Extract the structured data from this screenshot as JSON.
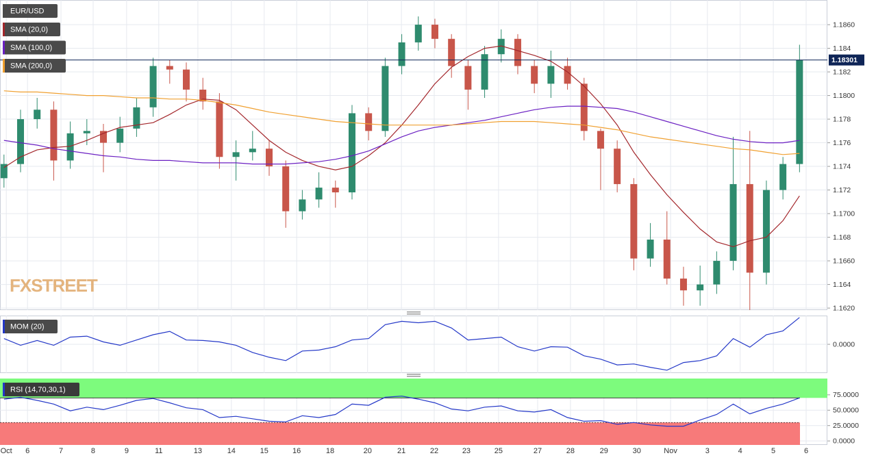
{
  "chart_data": [
    {
      "type": "candlestick",
      "title": "EUR/USD",
      "brand": "FXSTREET",
      "x": [
        0,
        0.5,
        1,
        1.5,
        2,
        2.5,
        3,
        3.5,
        4,
        4.5,
        5,
        5.5,
        6,
        6.5,
        7,
        7.5,
        8,
        8.5,
        9,
        9.5,
        10,
        10.5,
        11,
        11.5,
        12,
        12.5,
        13,
        13.5,
        14,
        14.5,
        15,
        15.5,
        16,
        16.5,
        17,
        17.5,
        18,
        18.5,
        19,
        19.5,
        20,
        20.5,
        21,
        21.5,
        22,
        22.5,
        23,
        23.5,
        24
      ],
      "open": [
        1.173,
        1.1742,
        1.178,
        1.1788,
        1.1745,
        1.1768,
        1.177,
        1.176,
        1.1772,
        1.179,
        1.1825,
        1.1822,
        1.1805,
        1.1795,
        1.1748,
        1.1752,
        1.1755,
        1.174,
        1.1702,
        1.1712,
        1.1722,
        1.1718,
        1.1785,
        1.177,
        1.1825,
        1.1845,
        1.186,
        1.1848,
        1.1825,
        1.1805,
        1.1835,
        1.1848,
        1.1825,
        1.181,
        1.1825,
        1.181,
        1.177,
        1.1755,
        1.1725,
        1.1662,
        1.1678,
        1.1645,
        1.1635,
        1.164,
        1.166,
        1.1725,
        1.165,
        1.172,
        1.1742
      ],
      "high": [
        1.175,
        1.1788,
        1.1798,
        1.1795,
        1.1778,
        1.178,
        1.1776,
        1.1782,
        1.1798,
        1.1832,
        1.183,
        1.1828,
        1.1815,
        1.1802,
        1.1762,
        1.177,
        1.1762,
        1.1745,
        1.172,
        1.1735,
        1.1728,
        1.1792,
        1.179,
        1.1832,
        1.1852,
        1.1867,
        1.1865,
        1.1852,
        1.183,
        1.1842,
        1.1856,
        1.1852,
        1.183,
        1.1838,
        1.1832,
        1.1815,
        1.1772,
        1.1762,
        1.173,
        1.1692,
        1.1702,
        1.1655,
        1.1656,
        1.1668,
        1.1765,
        1.177,
        1.1728,
        1.1748,
        1.1843
      ],
      "low": [
        1.1722,
        1.1735,
        1.1772,
        1.1728,
        1.1738,
        1.1758,
        1.1735,
        1.1752,
        1.1765,
        1.1782,
        1.181,
        1.1795,
        1.1788,
        1.1738,
        1.1728,
        1.1745,
        1.1732,
        1.1688,
        1.1695,
        1.1705,
        1.1705,
        1.1712,
        1.1762,
        1.1765,
        1.1818,
        1.1838,
        1.184,
        1.1815,
        1.1788,
        1.1798,
        1.1828,
        1.1818,
        1.1802,
        1.1798,
        1.1805,
        1.1762,
        1.172,
        1.1718,
        1.1652,
        1.1655,
        1.164,
        1.1622,
        1.1622,
        1.1632,
        1.1652,
        1.1605,
        1.164,
        1.1712,
        1.1735
      ],
      "close": [
        1.1742,
        1.178,
        1.1788,
        1.1745,
        1.1768,
        1.177,
        1.176,
        1.1772,
        1.179,
        1.1825,
        1.1822,
        1.1805,
        1.1795,
        1.1748,
        1.1752,
        1.1755,
        1.174,
        1.1702,
        1.1712,
        1.1722,
        1.1718,
        1.1785,
        1.177,
        1.1825,
        1.1845,
        1.186,
        1.1848,
        1.1825,
        1.1805,
        1.1835,
        1.1848,
        1.1825,
        1.181,
        1.1825,
        1.181,
        1.177,
        1.1755,
        1.1725,
        1.1662,
        1.1678,
        1.1645,
        1.1635,
        1.164,
        1.166,
        1.1725,
        1.165,
        1.172,
        1.1742,
        1.183
      ],
      "up_color": "#2e8b6e",
      "down_color": "#c8564a",
      "series": [
        {
          "name": "SMA (20,0)",
          "color": "#a3262b",
          "values": [
            1.1739,
            1.1748,
            1.1754,
            1.1756,
            1.1757,
            1.1762,
            1.1768,
            1.1773,
            1.1775,
            1.1777,
            1.1784,
            1.1792,
            1.1797,
            1.1796,
            1.1788,
            1.1775,
            1.1762,
            1.1752,
            1.1745,
            1.174,
            1.1737,
            1.174,
            1.1749,
            1.176,
            1.1775,
            1.1792,
            1.181,
            1.1824,
            1.1833,
            1.184,
            1.1842,
            1.1838,
            1.1834,
            1.1829,
            1.182,
            1.1808,
            1.1793,
            1.1775,
            1.1752,
            1.1733,
            1.1716,
            1.1701,
            1.1687,
            1.1676,
            1.1672,
            1.1677,
            1.168,
            1.1694,
            1.1715
          ]
        },
        {
          "name": "SMA (100,0)",
          "color": "#6a1fc2",
          "values": [
            1.1762,
            1.176,
            1.1758,
            1.1755,
            1.1753,
            1.1751,
            1.1749,
            1.1748,
            1.1746,
            1.1745,
            1.1745,
            1.1744,
            1.1743,
            1.1743,
            1.1743,
            1.1742,
            1.1742,
            1.1742,
            1.1743,
            1.1744,
            1.1746,
            1.1749,
            1.1753,
            1.1759,
            1.1765,
            1.177,
            1.1773,
            1.1775,
            1.1777,
            1.1779,
            1.1782,
            1.1785,
            1.1788,
            1.179,
            1.1791,
            1.1791,
            1.179,
            1.1789,
            1.1786,
            1.1782,
            1.1778,
            1.1774,
            1.177,
            1.1766,
            1.1763,
            1.1761,
            1.176,
            1.176,
            1.1762
          ]
        },
        {
          "name": "SMA (200,0)",
          "color": "#f0a030",
          "values": [
            1.1804,
            1.1803,
            1.1803,
            1.1802,
            1.1801,
            1.18,
            1.18,
            1.1799,
            1.1798,
            1.1798,
            1.1797,
            1.1797,
            1.1796,
            1.1794,
            1.1792,
            1.1789,
            1.1786,
            1.1784,
            1.1782,
            1.178,
            1.1778,
            1.1777,
            1.1776,
            1.1775,
            1.1775,
            1.1775,
            1.1775,
            1.1775,
            1.1776,
            1.1777,
            1.1778,
            1.1778,
            1.1778,
            1.1777,
            1.1776,
            1.1775,
            1.1773,
            1.1771,
            1.1768,
            1.1765,
            1.1763,
            1.1761,
            1.1759,
            1.1757,
            1.1755,
            1.1754,
            1.1752,
            1.175,
            1.1751
          ]
        }
      ],
      "last_price": 1.18301,
      "last_price_color": "#0f2557",
      "xlim": [
        -0.12,
        24.84
      ],
      "xticks": [
        {
          "value": 0.07,
          "label": "Oct"
        },
        {
          "value": 0.71,
          "label": "6"
        },
        {
          "value": 1.72,
          "label": "7"
        },
        {
          "value": 2.69,
          "label": "8"
        },
        {
          "value": 3.7,
          "label": "9"
        },
        {
          "value": 4.67,
          "label": "11"
        },
        {
          "value": 5.85,
          "label": "13"
        },
        {
          "value": 6.86,
          "label": "14"
        },
        {
          "value": 7.85,
          "label": "15"
        },
        {
          "value": 8.83,
          "label": "16"
        },
        {
          "value": 9.84,
          "label": "18"
        },
        {
          "value": 10.97,
          "label": "20"
        },
        {
          "value": 11.99,
          "label": "21"
        },
        {
          "value": 12.98,
          "label": "22"
        },
        {
          "value": 13.95,
          "label": "23"
        },
        {
          "value": 14.92,
          "label": "25"
        },
        {
          "value": 16.1,
          "label": "27"
        },
        {
          "value": 17.09,
          "label": "28"
        },
        {
          "value": 18.1,
          "label": "29"
        },
        {
          "value": 19.09,
          "label": "30"
        },
        {
          "value": 20.11,
          "label": "Nov"
        },
        {
          "value": 21.22,
          "label": "3"
        },
        {
          "value": 22.21,
          "label": "4"
        },
        {
          "value": 23.21,
          "label": "5"
        },
        {
          "value": 24.2,
          "label": "6"
        }
      ],
      "ylim": [
        1.16183,
        1.18809
      ],
      "yticks": [
        {
          "value": 1.162,
          "label": "1.1620"
        },
        1.164,
        {
          "value": 1.166,
          "label": "1.1660"
        },
        1.168,
        {
          "value": 1.17,
          "label": "1.1700"
        },
        1.172,
        1.174,
        1.176,
        1.178,
        {
          "value": 1.18,
          "label": "1.1800"
        },
        1.182,
        1.184,
        {
          "value": 1.186,
          "label": "1.1860"
        }
      ],
      "grid": true
    },
    {
      "type": "line",
      "x": [
        0,
        0.5,
        1,
        1.5,
        2,
        2.5,
        3,
        3.5,
        4,
        4.5,
        5,
        5.5,
        6,
        6.5,
        7,
        7.5,
        8,
        8.5,
        9,
        9.5,
        10,
        10.5,
        11,
        11.5,
        12,
        12.5,
        13,
        13.5,
        14,
        14.5,
        15,
        15.5,
        16,
        16.5,
        17,
        17.5,
        18,
        18.5,
        19,
        19.5,
        20,
        20.5,
        21,
        21.5,
        22,
        22.5,
        23,
        23.5,
        24
      ],
      "series": [
        {
          "name": "MOM (20)",
          "color": "#2438c8",
          "values": [
            0.0012,
            -0.0002,
            0.0008,
            -0.0002,
            0.0015,
            0.0017,
            0.0005,
            -0.0002,
            0.0009,
            0.002,
            0.0027,
            0.0009,
            0.0008,
            0.0005,
            -0.0002,
            -0.0017,
            -0.0027,
            -0.0034,
            -0.0014,
            -0.0012,
            -0.0005,
            0.0009,
            0.0012,
            0.0041,
            0.0048,
            0.0045,
            0.0048,
            0.0034,
            0.0009,
            0.0012,
            0.0015,
            -0.0005,
            -0.0014,
            -0.0005,
            -0.0006,
            -0.0024,
            -0.0031,
            -0.0043,
            -0.0041,
            -0.0048,
            -0.0054,
            -0.0038,
            -0.0034,
            -0.0024,
            0.0012,
            -0.0006,
            0.002,
            0.0028,
            0.0056
          ]
        }
      ],
      "ylim": [
        -0.006,
        0.006
      ],
      "yticks": [
        {
          "value": 0,
          "label": "0.0000"
        }
      ],
      "grid": true
    },
    {
      "type": "line",
      "x": [
        0,
        0.5,
        1,
        1.5,
        2,
        2.5,
        3,
        3.5,
        4,
        4.5,
        5,
        5.5,
        6,
        6.5,
        7,
        7.5,
        8,
        8.5,
        9,
        9.5,
        10,
        10.5,
        11,
        11.5,
        12,
        12.5,
        13,
        13.5,
        14,
        14.5,
        15,
        15.5,
        16,
        16.5,
        17,
        17.5,
        18,
        18.5,
        19,
        19.5,
        20,
        20.5,
        21,
        21.5,
        22,
        22.5,
        23,
        23.5,
        24
      ],
      "series": [
        {
          "name": "RSI (14,70,30,1)",
          "color": "#2438c8",
          "values": [
            68,
            71,
            66,
            60,
            49,
            55,
            51,
            58,
            66,
            69,
            62,
            54,
            51,
            38,
            40,
            36,
            32,
            31,
            41,
            38,
            43,
            60,
            58,
            71,
            73,
            68,
            62,
            52,
            49,
            55,
            57,
            49,
            47,
            51,
            38,
            32,
            33,
            27,
            30,
            26,
            24,
            24,
            34,
            43,
            60,
            44,
            53,
            60,
            70
          ]
        }
      ],
      "overbought": 70,
      "oversold": 30,
      "overbought_color": "#7dfb7d",
      "oversold_color": "#f77a7a",
      "ylim": [
        -6.5,
        101.5
      ],
      "yticks": [
        {
          "value": 0,
          "label": "0.0000"
        },
        {
          "value": 25,
          "label": "25.0000"
        },
        {
          "value": 50,
          "label": "50.0000"
        },
        {
          "value": 75,
          "label": "75.0000"
        }
      ],
      "grid": true
    }
  ]
}
